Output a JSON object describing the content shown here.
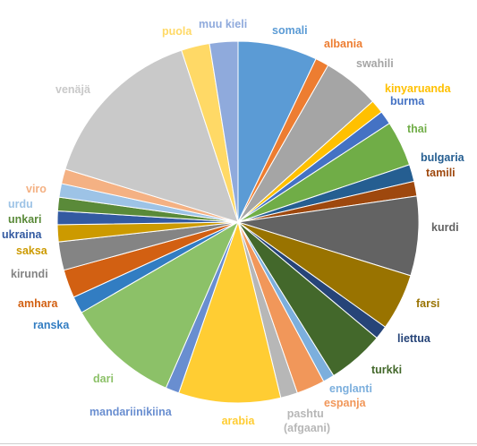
{
  "chart_data": {
    "type": "pie",
    "title": "",
    "legend": "none",
    "slices": [
      {
        "label": "somali",
        "value": 7.0,
        "color": "#5b9bd5"
      },
      {
        "label": "albania",
        "value": 1.2,
        "color": "#ed7d31"
      },
      {
        "label": "swahili",
        "value": 5.0,
        "color": "#a5a5a5"
      },
      {
        "label": "kinyaruanda",
        "value": 1.2,
        "color": "#ffc000"
      },
      {
        "label": "burma",
        "value": 1.2,
        "color": "#4472c4"
      },
      {
        "label": "thai",
        "value": 4.0,
        "color": "#70ad47"
      },
      {
        "label": "bulgaria",
        "value": 1.5,
        "color": "#255e91"
      },
      {
        "label": "tamili",
        "value": 1.3,
        "color": "#9e480e"
      },
      {
        "label": "kurdi",
        "value": 7.0,
        "color": "#636363"
      },
      {
        "label": "farsi",
        "value": 5.0,
        "color": "#997300"
      },
      {
        "label": "liettua",
        "value": 1.2,
        "color": "#264478"
      },
      {
        "label": "turkki",
        "value": 5.0,
        "color": "#43682b"
      },
      {
        "label": "englanti",
        "value": 1.0,
        "color": "#7cafdd"
      },
      {
        "label": "espanja",
        "value": 2.5,
        "color": "#f1975a"
      },
      {
        "label": "pashtu (afgaani)",
        "value": 1.5,
        "color": "#b7b7b7"
      },
      {
        "label": "arabia",
        "value": 9.0,
        "color": "#ffcd33"
      },
      {
        "label": "mandariinikiina",
        "value": 1.2,
        "color": "#698ed0"
      },
      {
        "label": "dari",
        "value": 10.0,
        "color": "#8cc168"
      },
      {
        "label": "ranska",
        "value": 1.5,
        "color": "#327dc2"
      },
      {
        "label": "amhara",
        "value": 2.5,
        "color": "#d26012"
      },
      {
        "label": "kirundi",
        "value": 2.5,
        "color": "#848484"
      },
      {
        "label": "saksa",
        "value": 1.5,
        "color": "#cc9a00"
      },
      {
        "label": "ukraina",
        "value": 1.2,
        "color": "#335aa1"
      },
      {
        "label": "unkari",
        "value": 1.2,
        "color": "#5a8a39"
      },
      {
        "label": "urdu",
        "value": 1.2,
        "color": "#9dc3e6"
      },
      {
        "label": "viro",
        "value": 1.3,
        "color": "#f4b183"
      },
      {
        "label": "venäjä",
        "value": 15.0,
        "color": "#c9c9c9"
      },
      {
        "label": "puola",
        "value": 2.5,
        "color": "#ffd966"
      },
      {
        "label": "muu kieli",
        "value": 2.5,
        "color": "#8faadc"
      }
    ]
  }
}
